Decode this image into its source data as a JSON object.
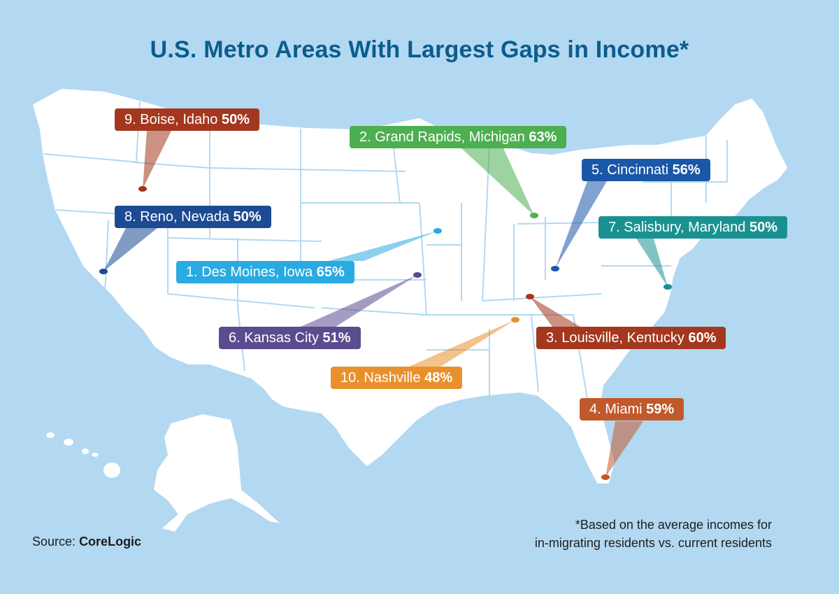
{
  "title": "U.S. Metro Areas With Largest Gaps in Income*",
  "source": {
    "label": "Source:",
    "name": "CoreLogic"
  },
  "footnote": {
    "line1": "*Based on the average incomes for",
    "line2": "in-migrating residents vs. current residents"
  },
  "colors": {
    "background": "#b3d8f2",
    "land": "#ffffff",
    "borders": "#b3d8f2",
    "title": "#0a5d8c"
  },
  "callouts": [
    {
      "rank_label": "1. Des Moines, Iowa",
      "value": "65%",
      "color": "#29aae1"
    },
    {
      "rank_label": "2. Grand Rapids, Michigan",
      "value": "63%",
      "color": "#4caf50"
    },
    {
      "rank_label": "3. Louisville, Kentucky",
      "value": "60%",
      "color": "#a3381f"
    },
    {
      "rank_label": "4. Miami",
      "value": "59%",
      "color": "#c1592b"
    },
    {
      "rank_label": "5. Cincinnati",
      "value": "56%",
      "color": "#1b57a8"
    },
    {
      "rank_label": "6. Kansas City",
      "value": "51%",
      "color": "#5b4c8e"
    },
    {
      "rank_label": "7. Salisbury, Maryland",
      "value": "50%",
      "color": "#1a9191"
    },
    {
      "rank_label": "8. Reno, Nevada",
      "value": "50%",
      "color": "#1c4b94"
    },
    {
      "rank_label": "9. Boise, Idaho",
      "value": "50%",
      "color": "#a3381f"
    },
    {
      "rank_label": "10. Nashville",
      "value": "48%",
      "color": "#e8912c"
    }
  ]
}
